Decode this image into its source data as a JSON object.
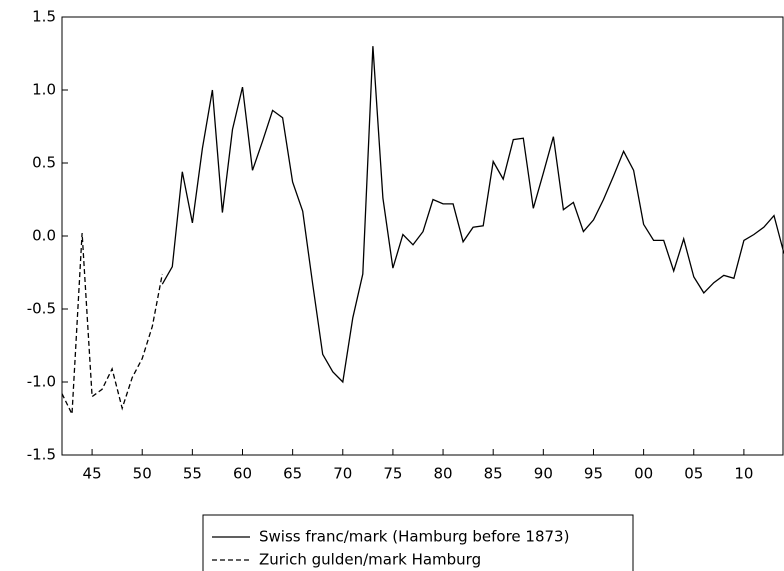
{
  "chart_data": {
    "type": "line",
    "x": [
      1842,
      1843,
      1844,
      1845,
      1846,
      1847,
      1848,
      1849,
      1850,
      1851,
      1852,
      1853,
      1854,
      1855,
      1856,
      1857,
      1858,
      1859,
      1860,
      1861,
      1862,
      1863,
      1864,
      1865,
      1866,
      1867,
      1868,
      1869,
      1870,
      1871,
      1872,
      1873,
      1874,
      1875,
      1876,
      1877,
      1878,
      1879,
      1880,
      1881,
      1882,
      1883,
      1884,
      1885,
      1886,
      1887,
      1888,
      1889,
      1890,
      1891,
      1892,
      1893,
      1894,
      1895,
      1896,
      1897,
      1898,
      1899,
      1900,
      1901,
      1902,
      1903,
      1904,
      1905,
      1906,
      1907,
      1908,
      1909,
      1910,
      1911,
      1912,
      1913,
      1914
    ],
    "series": [
      {
        "name": "Swiss franc/mark (Hamburg before 1873)",
        "color": "#000000",
        "style": "solid",
        "values": [
          null,
          null,
          null,
          null,
          null,
          null,
          null,
          null,
          null,
          null,
          -0.33,
          -0.21,
          0.44,
          0.09,
          0.6,
          1.0,
          0.16,
          0.73,
          1.02,
          0.45,
          0.65,
          0.86,
          0.81,
          0.37,
          0.17,
          -0.33,
          -0.81,
          -0.93,
          -1.0,
          -0.56,
          -0.26,
          1.3,
          0.26,
          -0.22,
          0.01,
          -0.06,
          0.03,
          0.25,
          0.22,
          0.22,
          -0.04,
          0.06,
          0.07,
          0.51,
          0.39,
          0.66,
          0.67,
          0.19,
          0.43,
          0.68,
          0.18,
          0.23,
          0.03,
          0.11,
          0.25,
          0.41,
          0.58,
          0.45,
          0.08,
          -0.03,
          -0.03,
          -0.24,
          -0.02,
          -0.28,
          -0.39,
          -0.32,
          -0.27,
          -0.29,
          -0.03,
          0.01,
          0.06,
          0.14,
          -0.12
        ]
      },
      {
        "name": "Zurich gulden/mark Hamburg",
        "color": "#000000",
        "style": "dashed",
        "values": [
          -1.08,
          -1.22,
          0.02,
          -1.1,
          -1.05,
          -0.91,
          -1.18,
          -0.97,
          -0.84,
          -0.62,
          -0.26,
          null,
          null,
          null,
          null,
          null,
          null,
          null,
          null,
          null,
          null,
          null,
          null,
          null,
          null,
          null,
          null,
          null,
          null,
          null,
          null,
          null,
          null,
          null,
          null,
          null,
          null,
          null,
          null,
          null,
          null,
          null,
          null,
          null,
          null,
          null,
          null,
          null,
          null,
          null,
          null,
          null,
          null,
          null,
          null,
          null,
          null,
          null,
          null,
          null,
          null,
          null,
          null,
          null,
          null,
          null,
          null,
          null,
          null,
          null,
          null,
          null,
          null
        ]
      }
    ],
    "xlim": [
      1842,
      1914
    ],
    "xticks": [
      {
        "value": 1845,
        "label": "45"
      },
      {
        "value": 1850,
        "label": "50"
      },
      {
        "value": 1855,
        "label": "55"
      },
      {
        "value": 1860,
        "label": "60"
      },
      {
        "value": 1865,
        "label": "65"
      },
      {
        "value": 1870,
        "label": "70"
      },
      {
        "value": 1875,
        "label": "75"
      },
      {
        "value": 1880,
        "label": "80"
      },
      {
        "value": 1885,
        "label": "85"
      },
      {
        "value": 1890,
        "label": "90"
      },
      {
        "value": 1895,
        "label": "95"
      },
      {
        "value": 1900,
        "label": "00"
      },
      {
        "value": 1905,
        "label": "05"
      },
      {
        "value": 1910,
        "label": "10"
      }
    ],
    "ylim": [
      -1.5,
      1.5
    ],
    "yticks": [
      -1.5,
      {
        "value": -1,
        "label": "-1.0"
      },
      -0.5,
      {
        "value": 0,
        "label": "0.0"
      },
      0.5,
      {
        "value": 1,
        "label": "1.0"
      },
      1.5
    ],
    "legend": "bottom"
  }
}
